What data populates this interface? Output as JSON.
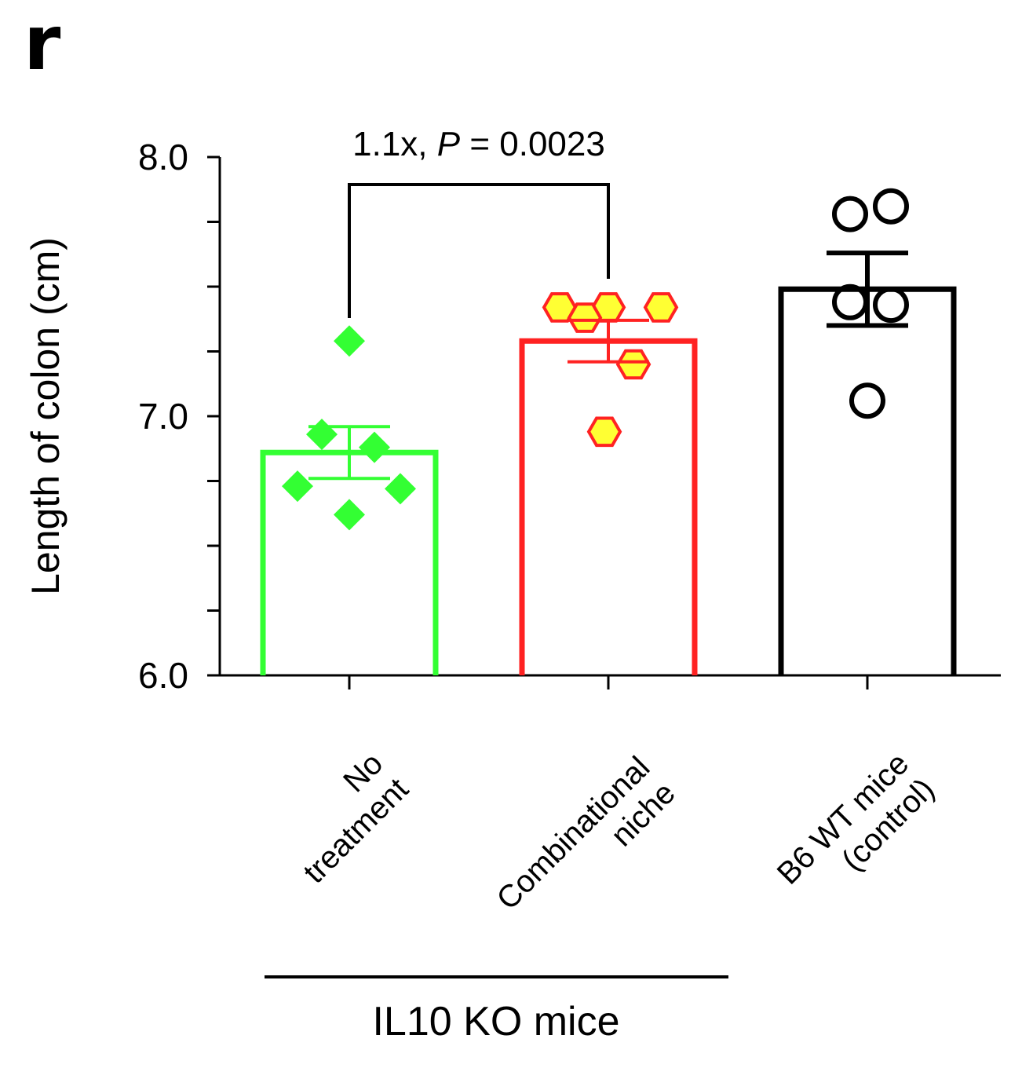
{
  "panel_letter": "r",
  "chart_data": {
    "type": "bar",
    "ylabel": "Length of colon (cm)",
    "ylim": [
      6.0,
      8.0
    ],
    "yticks": [
      6.0,
      7.0,
      8.0
    ],
    "ytick_labels": [
      "6.0",
      "7.0",
      "8.0"
    ],
    "minor_tick_step": 0.25,
    "categories": [
      {
        "label_lines": [
          "No",
          "treatment"
        ],
        "mean": 6.86,
        "sem": 0.1,
        "color": "#33ff33",
        "marker": "diamond",
        "points": [
          7.29,
          6.93,
          6.88,
          6.73,
          6.72,
          6.62
        ]
      },
      {
        "label_lines": [
          "Combinational",
          "niche"
        ],
        "mean": 7.29,
        "sem": 0.08,
        "color": "#ff2222",
        "marker_fill": "#ffff33",
        "marker": "hexagon",
        "points": [
          7.42,
          7.42,
          7.42,
          7.38,
          7.2,
          6.94
        ]
      },
      {
        "label_lines": [
          "B6 WT mice",
          "(control)"
        ],
        "mean": 7.49,
        "sem": 0.14,
        "color": "#000000",
        "marker": "open-circle",
        "points": [
          7.81,
          7.78,
          7.44,
          7.43,
          7.06
        ]
      }
    ],
    "annotation": {
      "prefix": "1.1x, ",
      "p_symbol": "P",
      "suffix": " = 0.0023",
      "from_category": 0,
      "to_category": 1
    },
    "group_label": "IL10 KO mice"
  }
}
